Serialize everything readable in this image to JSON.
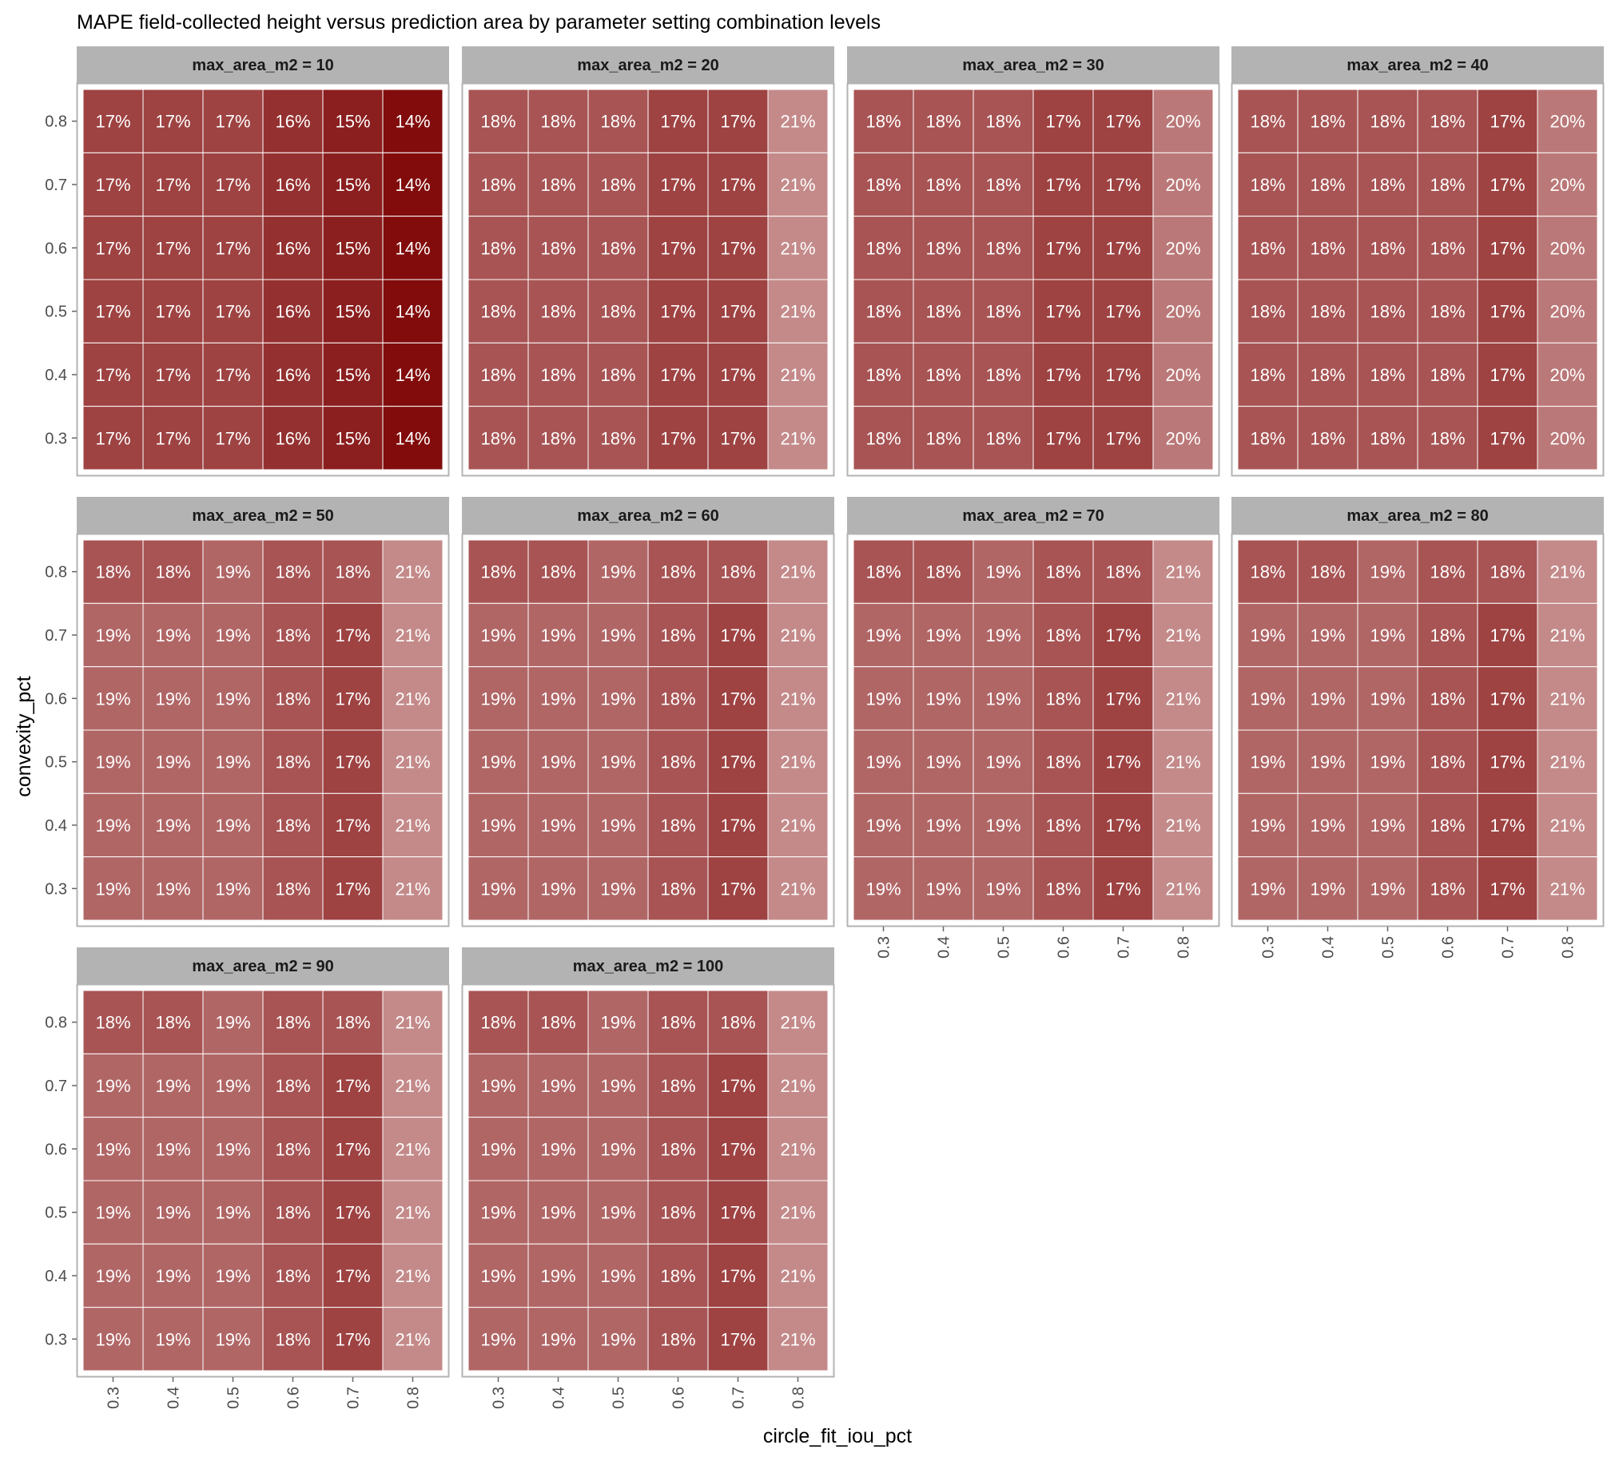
{
  "chart_data": {
    "type": "heatmap",
    "title": "MAPE field-collected height versus prediction area by parameter setting combination levels",
    "xlabel": "circle_fit_iou_pct",
    "ylabel": "convexity_pct",
    "x": [
      "0.3",
      "0.4",
      "0.5",
      "0.6",
      "0.7",
      "0.8"
    ],
    "y": [
      "0.3",
      "0.4",
      "0.5",
      "0.6",
      "0.7",
      "0.8"
    ],
    "facet_variable": "max_area_m2",
    "colors": {
      "low": "#820c0c",
      "high": "#c48a8a",
      "strip": "#b3b3b3",
      "grid_line": "#ffffff"
    },
    "panels": [
      {
        "label": "max_area_m2 = 10",
        "cells": [
          [
            "17%",
            "17%",
            "17%",
            "16%",
            "15%",
            "14%"
          ],
          [
            "17%",
            "17%",
            "17%",
            "16%",
            "15%",
            "14%"
          ],
          [
            "17%",
            "17%",
            "17%",
            "16%",
            "15%",
            "14%"
          ],
          [
            "17%",
            "17%",
            "17%",
            "16%",
            "15%",
            "14%"
          ],
          [
            "17%",
            "17%",
            "17%",
            "16%",
            "15%",
            "14%"
          ],
          [
            "17%",
            "17%",
            "17%",
            "16%",
            "15%",
            "14%"
          ]
        ]
      },
      {
        "label": "max_area_m2 = 20",
        "cells": [
          [
            "18%",
            "18%",
            "18%",
            "17%",
            "17%",
            "21%"
          ],
          [
            "18%",
            "18%",
            "18%",
            "17%",
            "17%",
            "21%"
          ],
          [
            "18%",
            "18%",
            "18%",
            "17%",
            "17%",
            "21%"
          ],
          [
            "18%",
            "18%",
            "18%",
            "17%",
            "17%",
            "21%"
          ],
          [
            "18%",
            "18%",
            "18%",
            "17%",
            "17%",
            "21%"
          ],
          [
            "18%",
            "18%",
            "18%",
            "17%",
            "17%",
            "21%"
          ]
        ]
      },
      {
        "label": "max_area_m2 = 30",
        "cells": [
          [
            "18%",
            "18%",
            "18%",
            "17%",
            "17%",
            "20%"
          ],
          [
            "18%",
            "18%",
            "18%",
            "17%",
            "17%",
            "20%"
          ],
          [
            "18%",
            "18%",
            "18%",
            "17%",
            "17%",
            "20%"
          ],
          [
            "18%",
            "18%",
            "18%",
            "17%",
            "17%",
            "20%"
          ],
          [
            "18%",
            "18%",
            "18%",
            "17%",
            "17%",
            "20%"
          ],
          [
            "18%",
            "18%",
            "18%",
            "17%",
            "17%",
            "20%"
          ]
        ]
      },
      {
        "label": "max_area_m2 = 40",
        "cells": [
          [
            "18%",
            "18%",
            "18%",
            "18%",
            "17%",
            "20%"
          ],
          [
            "18%",
            "18%",
            "18%",
            "18%",
            "17%",
            "20%"
          ],
          [
            "18%",
            "18%",
            "18%",
            "18%",
            "17%",
            "20%"
          ],
          [
            "18%",
            "18%",
            "18%",
            "18%",
            "17%",
            "20%"
          ],
          [
            "18%",
            "18%",
            "18%",
            "18%",
            "17%",
            "20%"
          ],
          [
            "18%",
            "18%",
            "18%",
            "18%",
            "17%",
            "20%"
          ]
        ]
      },
      {
        "label": "max_area_m2 = 50",
        "cells": [
          [
            "19%",
            "19%",
            "19%",
            "18%",
            "17%",
            "21%"
          ],
          [
            "19%",
            "19%",
            "19%",
            "18%",
            "17%",
            "21%"
          ],
          [
            "19%",
            "19%",
            "19%",
            "18%",
            "17%",
            "21%"
          ],
          [
            "19%",
            "19%",
            "19%",
            "18%",
            "17%",
            "21%"
          ],
          [
            "19%",
            "19%",
            "19%",
            "18%",
            "17%",
            "21%"
          ],
          [
            "18%",
            "18%",
            "19%",
            "18%",
            "18%",
            "21%"
          ]
        ]
      },
      {
        "label": "max_area_m2 = 60",
        "cells": [
          [
            "19%",
            "19%",
            "19%",
            "18%",
            "17%",
            "21%"
          ],
          [
            "19%",
            "19%",
            "19%",
            "18%",
            "17%",
            "21%"
          ],
          [
            "19%",
            "19%",
            "19%",
            "18%",
            "17%",
            "21%"
          ],
          [
            "19%",
            "19%",
            "19%",
            "18%",
            "17%",
            "21%"
          ],
          [
            "19%",
            "19%",
            "19%",
            "18%",
            "17%",
            "21%"
          ],
          [
            "18%",
            "18%",
            "19%",
            "18%",
            "18%",
            "21%"
          ]
        ]
      },
      {
        "label": "max_area_m2 = 70",
        "cells": [
          [
            "19%",
            "19%",
            "19%",
            "18%",
            "17%",
            "21%"
          ],
          [
            "19%",
            "19%",
            "19%",
            "18%",
            "17%",
            "21%"
          ],
          [
            "19%",
            "19%",
            "19%",
            "18%",
            "17%",
            "21%"
          ],
          [
            "19%",
            "19%",
            "19%",
            "18%",
            "17%",
            "21%"
          ],
          [
            "19%",
            "19%",
            "19%",
            "18%",
            "17%",
            "21%"
          ],
          [
            "18%",
            "18%",
            "19%",
            "18%",
            "18%",
            "21%"
          ]
        ]
      },
      {
        "label": "max_area_m2 = 80",
        "cells": [
          [
            "19%",
            "19%",
            "19%",
            "18%",
            "17%",
            "21%"
          ],
          [
            "19%",
            "19%",
            "19%",
            "18%",
            "17%",
            "21%"
          ],
          [
            "19%",
            "19%",
            "19%",
            "18%",
            "17%",
            "21%"
          ],
          [
            "19%",
            "19%",
            "19%",
            "18%",
            "17%",
            "21%"
          ],
          [
            "19%",
            "19%",
            "19%",
            "18%",
            "17%",
            "21%"
          ],
          [
            "18%",
            "18%",
            "19%",
            "18%",
            "18%",
            "21%"
          ]
        ]
      },
      {
        "label": "max_area_m2 = 90",
        "cells": [
          [
            "19%",
            "19%",
            "19%",
            "18%",
            "17%",
            "21%"
          ],
          [
            "19%",
            "19%",
            "19%",
            "18%",
            "17%",
            "21%"
          ],
          [
            "19%",
            "19%",
            "19%",
            "18%",
            "17%",
            "21%"
          ],
          [
            "19%",
            "19%",
            "19%",
            "18%",
            "17%",
            "21%"
          ],
          [
            "19%",
            "19%",
            "19%",
            "18%",
            "17%",
            "21%"
          ],
          [
            "18%",
            "18%",
            "19%",
            "18%",
            "18%",
            "21%"
          ]
        ]
      },
      {
        "label": "max_area_m2 = 100",
        "cells": [
          [
            "19%",
            "19%",
            "19%",
            "18%",
            "17%",
            "21%"
          ],
          [
            "19%",
            "19%",
            "19%",
            "18%",
            "17%",
            "21%"
          ],
          [
            "19%",
            "19%",
            "19%",
            "18%",
            "17%",
            "21%"
          ],
          [
            "19%",
            "19%",
            "19%",
            "18%",
            "17%",
            "21%"
          ],
          [
            "19%",
            "19%",
            "19%",
            "18%",
            "17%",
            "21%"
          ],
          [
            "18%",
            "18%",
            "19%",
            "18%",
            "18%",
            "21%"
          ]
        ]
      }
    ]
  }
}
